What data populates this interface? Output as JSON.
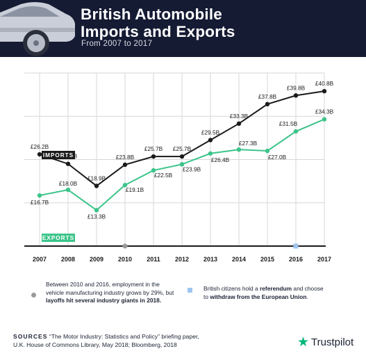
{
  "header": {
    "title_line1": "British Automobile",
    "title_line2": "Imports and Exports",
    "subtitle": "From 2007 to 2017"
  },
  "colors": {
    "header_bg": "#151b33",
    "imports": "#1b1b1b",
    "exports": "#3cc48a",
    "grid": "#d7d7d7",
    "event_2010": "#9a9a9a",
    "event_2016": "#9ec5ef",
    "brand_star": "#00b67a"
  },
  "chart_data": {
    "type": "line",
    "title": "British Automobile Imports and Exports",
    "subtitle": "From 2007 to 2017",
    "categories": [
      "2007",
      "2008",
      "2009",
      "2010",
      "2011",
      "2012",
      "2013",
      "2014",
      "2015",
      "2016",
      "2017"
    ],
    "unit": "£ billions",
    "ylim": [
      5,
      45
    ],
    "grid": true,
    "series": [
      {
        "name": "IMPORTS",
        "values": [
          26.2,
          24.0,
          18.9,
          23.8,
          25.7,
          25.7,
          29.5,
          33.3,
          37.8,
          39.8,
          40.8
        ],
        "labels": [
          "£26.2B",
          "£24.0B",
          "£18.9B",
          "£23.8B",
          "£25.7B",
          "£25.7B",
          "£29.5B",
          "£33.3B",
          "£37.8B",
          "£39.8B",
          "£40.8B"
        ]
      },
      {
        "name": "EXPORTS",
        "values": [
          16.7,
          18.0,
          13.3,
          19.1,
          22.5,
          23.9,
          26.4,
          27.3,
          27.0,
          31.5,
          34.3
        ],
        "labels": [
          "£16.7B",
          "£18.0B",
          "£13.3B",
          "£19.1B",
          "£22.5B",
          "£23.9B",
          "£26.4B",
          "£27.3B",
          "£27.0B",
          "£31.5B",
          "£34.3B"
        ]
      }
    ],
    "markers": [
      {
        "year": "2010",
        "shape": "circle"
      },
      {
        "year": "2016",
        "shape": "square"
      }
    ]
  },
  "notes": {
    "n2010_a": "Between 2010 and 2016, employment in the",
    "n2010_b": "vehicle manufacturing industry grows by 29%, but",
    "n2010_c": "layoffs hit several industry giants in 2018.",
    "n2016_a": "British citizens hold a ",
    "n2016_b": "referendum",
    "n2016_c": " and choose",
    "n2016_d": "to ",
    "n2016_e": "withdraw from the European Union",
    "n2016_f": "."
  },
  "sources": {
    "label": "SOURCES",
    "line1": " “The Motor Industry: Statistics and Policy” briefing paper,",
    "line2": "U.K. House of Commons Library, May 2018; Bloomberg, 2018"
  },
  "brand": {
    "star": "★",
    "name": "Trustpilot"
  }
}
